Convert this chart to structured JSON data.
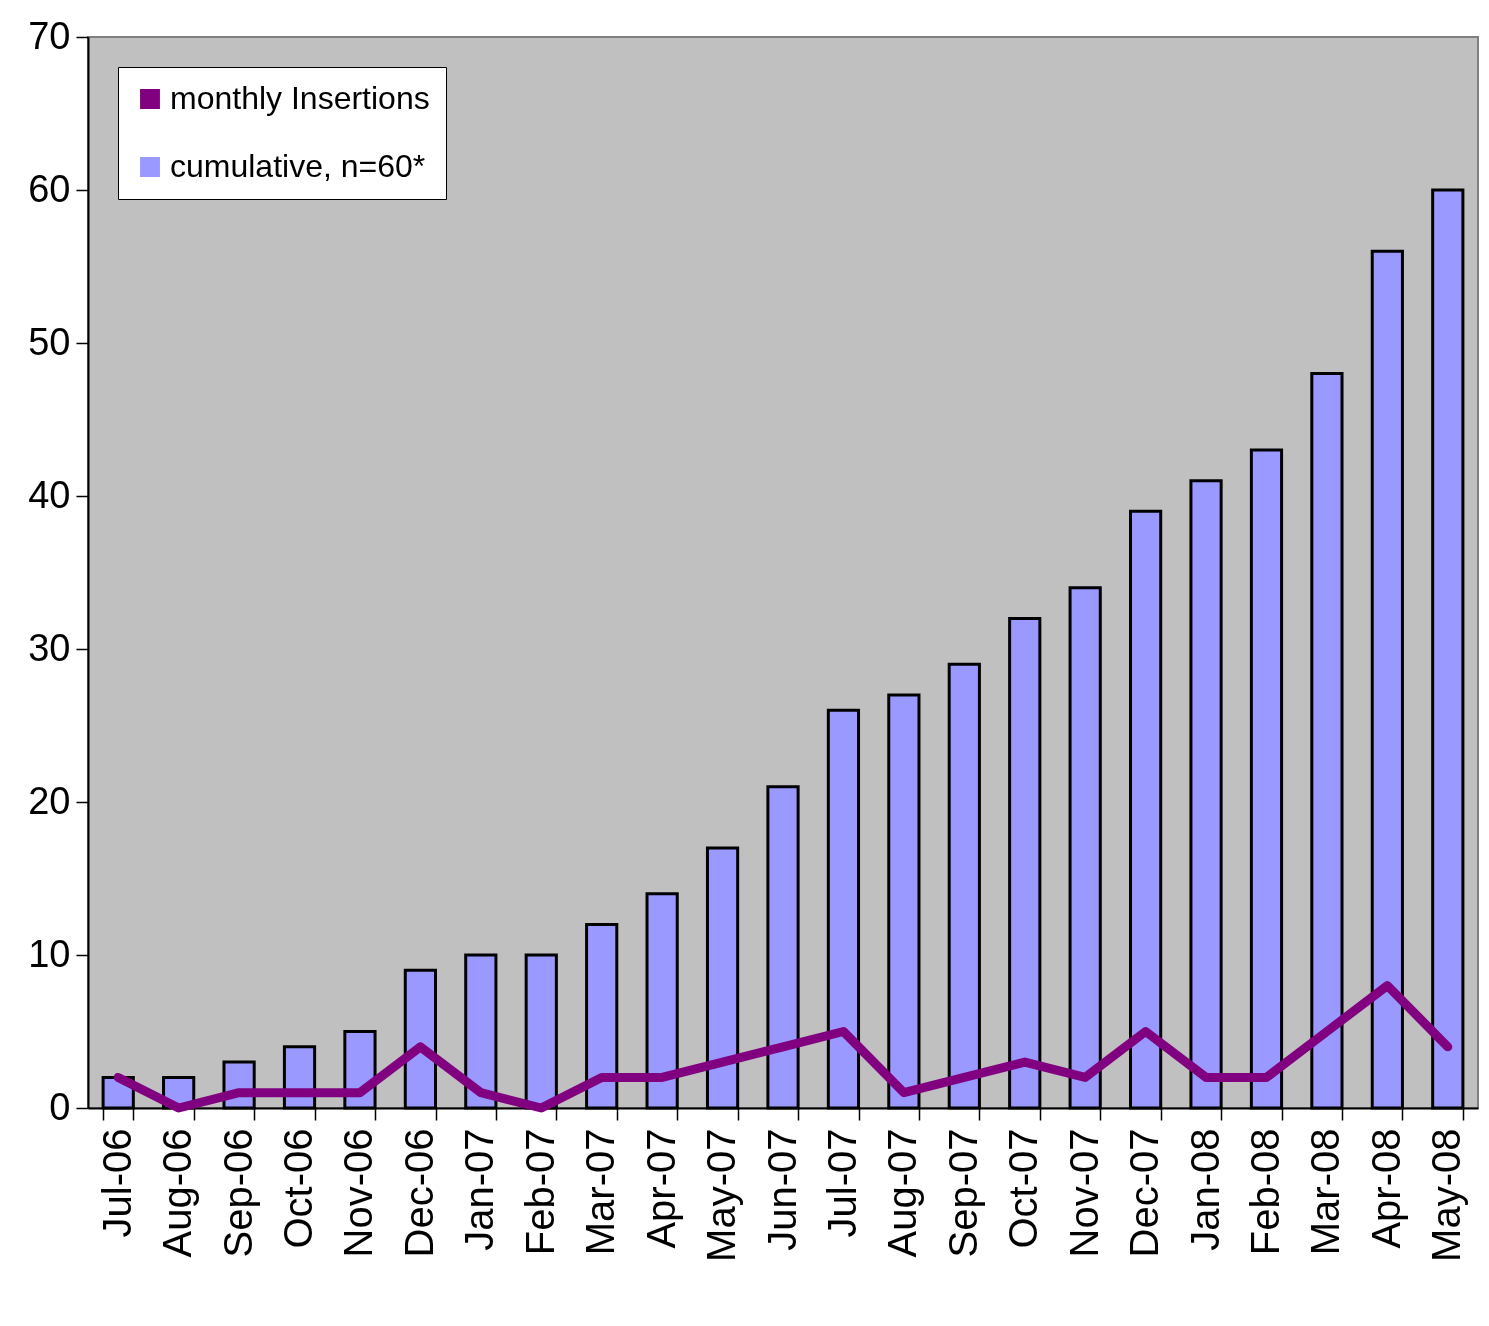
{
  "chart_data": {
    "type": "bar",
    "categories": [
      "Jul-06",
      "Aug-06",
      "Sep-06",
      "Oct-06",
      "Nov-06",
      "Dec-06",
      "Jan-07",
      "Feb-07",
      "Mar-07",
      "Apr-07",
      "May-07",
      "Jun-07",
      "Jul-07",
      "Aug-07",
      "Sep-07",
      "Oct-07",
      "Nov-07",
      "Dec-07",
      "Jan-08",
      "Feb-08",
      "Mar-08",
      "Apr-08",
      "May-08"
    ],
    "series": [
      {
        "name": "monthly Insertions",
        "type": "line",
        "line_style": "solid",
        "color": "#800080",
        "values": [
          2,
          0,
          1,
          1,
          1,
          4,
          1,
          0,
          2,
          2,
          3,
          4,
          5,
          1,
          2,
          3,
          2,
          5,
          2,
          2,
          5,
          8,
          4
        ]
      },
      {
        "name": "cumulative, n=60*",
        "color": "#9999ff",
        "values": [
          2,
          2,
          3,
          4,
          5,
          9,
          10,
          10,
          12,
          14,
          17,
          21,
          26,
          27,
          29,
          32,
          34,
          39,
          41,
          43,
          48,
          56,
          60
        ]
      }
    ],
    "ylim": [
      0,
      70
    ],
    "yticks": [
      0,
      10,
      20,
      30,
      40,
      50,
      60,
      70
    ],
    "grid": false,
    "legend": "top left"
  }
}
